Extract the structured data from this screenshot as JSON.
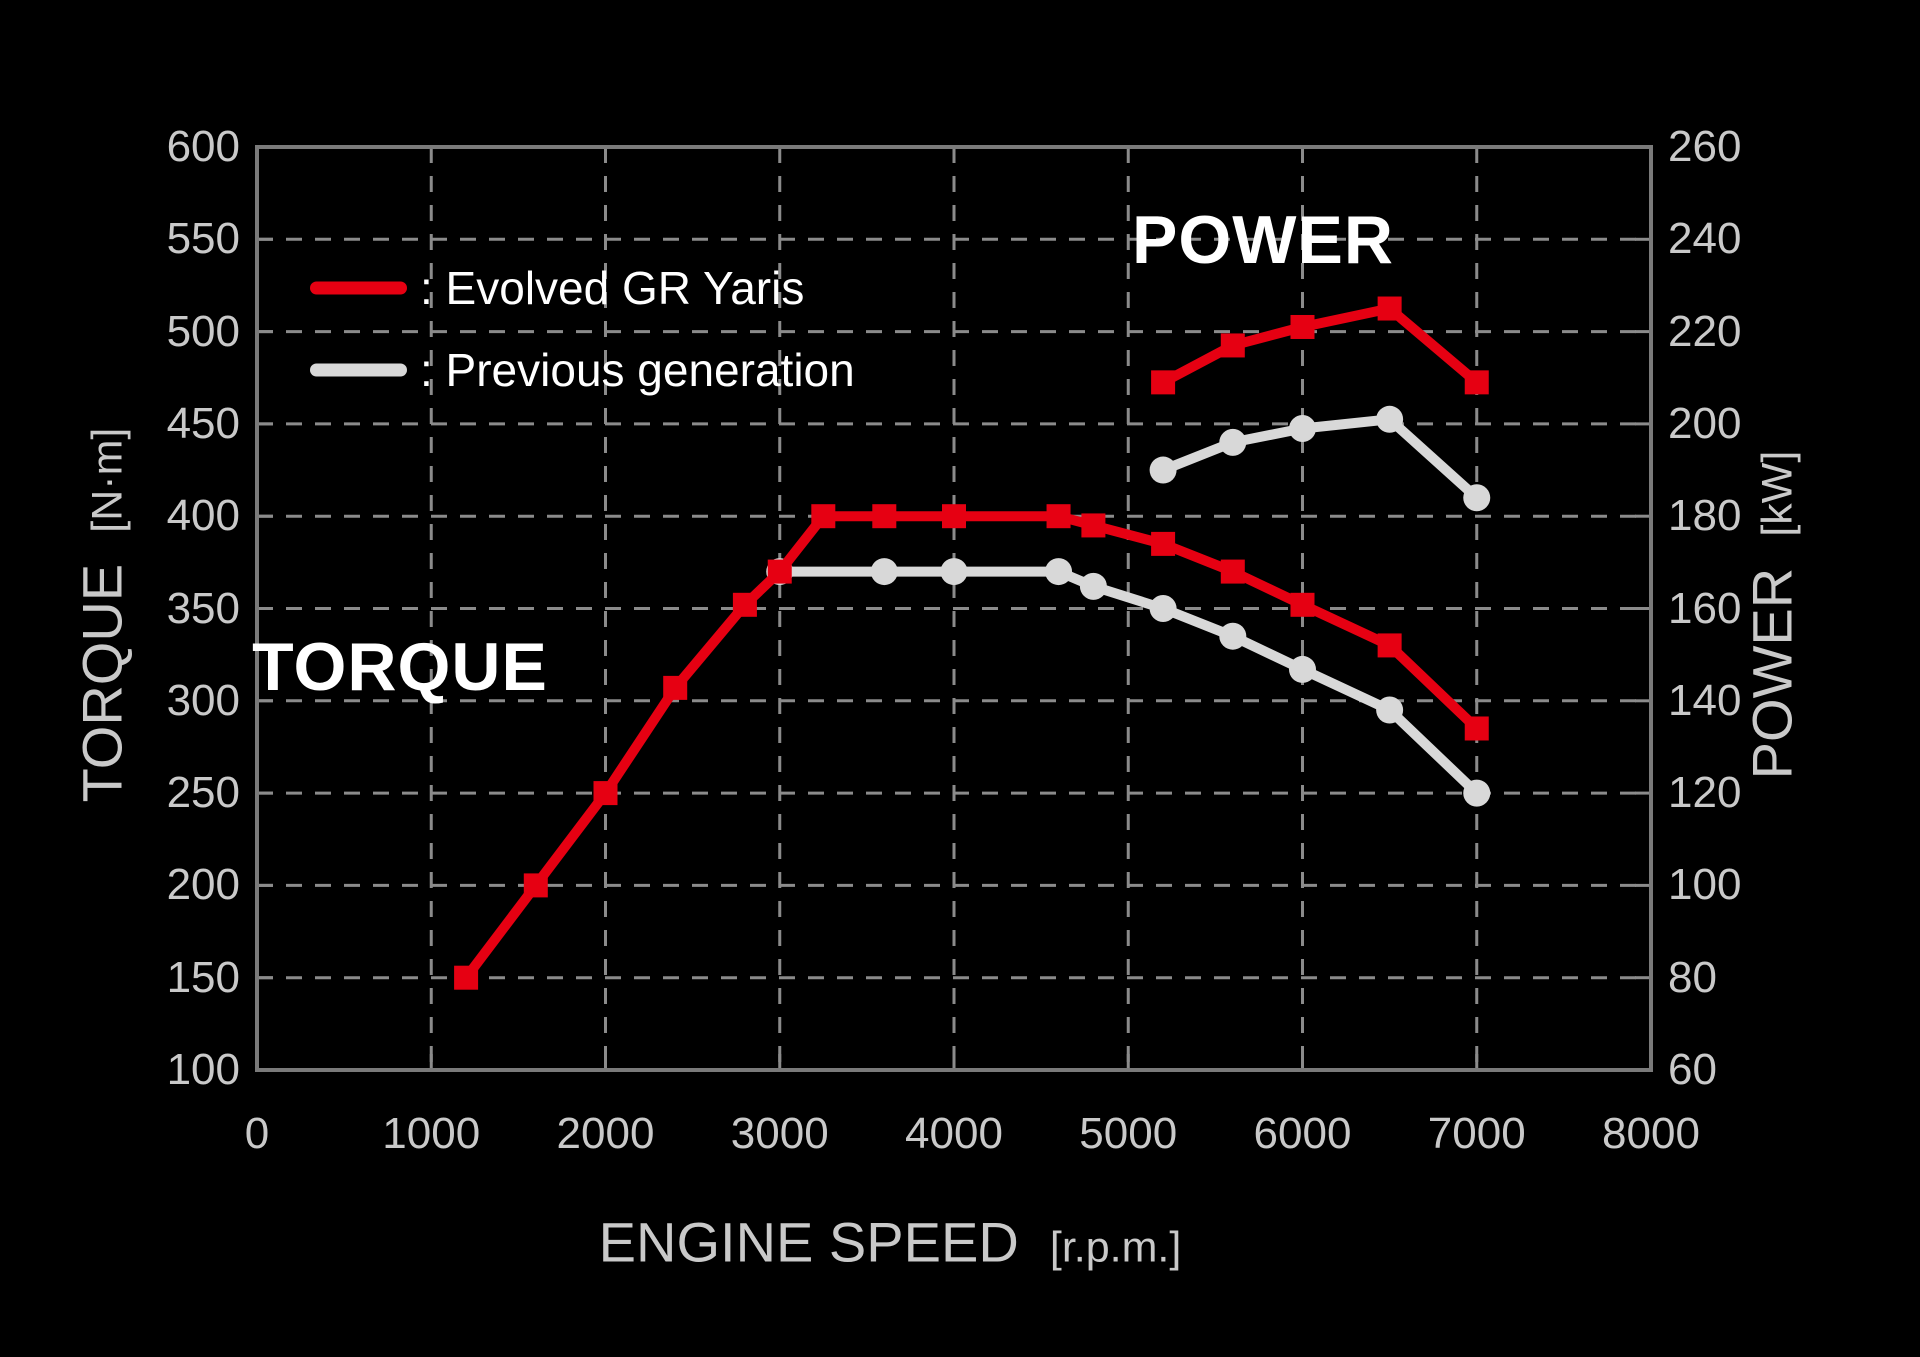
{
  "page": {
    "background": "#000000"
  },
  "chart_data": {
    "type": "line",
    "x_axis": {
      "label": "ENGINE SPEED",
      "unit": "[r.p.m.]",
      "min": 0,
      "max": 8000,
      "ticks": [
        0,
        1000,
        2000,
        3000,
        4000,
        5000,
        6000,
        7000,
        8000
      ]
    },
    "y_axis_left": {
      "label": "TORQUE",
      "unit": "[N·m]",
      "min": 100,
      "max": 600,
      "ticks": [
        600,
        550,
        500,
        450,
        400,
        350,
        300,
        250,
        200,
        150,
        100
      ]
    },
    "y_axis_right": {
      "label": "POWER",
      "unit": "[kW]",
      "min": 60,
      "max": 260,
      "ticks": [
        260,
        240,
        220,
        200,
        180,
        160,
        140,
        120,
        100,
        80,
        60
      ]
    },
    "annotations": {
      "torque_title": "TORQUE",
      "power_title": "POWER"
    },
    "legend": {
      "separator": ":",
      "items": [
        {
          "label": "Evolved GR Yaris",
          "color": "#e60012"
        },
        {
          "label": "Previous generation",
          "color": "#d8d8d8"
        }
      ]
    },
    "grid": {
      "on": true,
      "style": "dashed",
      "color": "#8b8b8b"
    },
    "frame_color": "#7a7a7a",
    "series": [
      {
        "name": "torque-previous-generation",
        "axis": "left",
        "color": "#d8d8d8",
        "marker": "circle",
        "points": [
          [
            3000,
            370
          ],
          [
            3600,
            370
          ],
          [
            4000,
            370
          ],
          [
            4600,
            370
          ],
          [
            4800,
            362
          ],
          [
            5200,
            350
          ],
          [
            5600,
            335
          ],
          [
            6000,
            317
          ],
          [
            6500,
            295
          ],
          [
            7000,
            250
          ]
        ]
      },
      {
        "name": "power-previous-generation",
        "axis": "right",
        "color": "#d8d8d8",
        "marker": "circle",
        "points": [
          [
            5200,
            190
          ],
          [
            5600,
            196
          ],
          [
            6000,
            199
          ],
          [
            6500,
            201
          ],
          [
            7000,
            184
          ]
        ]
      },
      {
        "name": "torque-evolved-gr-yaris",
        "axis": "left",
        "color": "#e60012",
        "marker": "square",
        "points": [
          [
            1200,
            150
          ],
          [
            1600,
            200
          ],
          [
            2000,
            250
          ],
          [
            2400,
            307
          ],
          [
            2800,
            352
          ],
          [
            3000,
            370
          ],
          [
            3250,
            400
          ],
          [
            3600,
            400
          ],
          [
            4000,
            400
          ],
          [
            4600,
            400
          ],
          [
            4800,
            395
          ],
          [
            5200,
            385
          ],
          [
            5600,
            370
          ],
          [
            6000,
            352
          ],
          [
            6500,
            330
          ],
          [
            7000,
            285
          ]
        ]
      },
      {
        "name": "power-evolved-gr-yaris",
        "axis": "right",
        "color": "#e60012",
        "marker": "square",
        "points": [
          [
            5200,
            209
          ],
          [
            5600,
            217
          ],
          [
            6000,
            221
          ],
          [
            6500,
            225
          ],
          [
            7000,
            209
          ]
        ]
      }
    ]
  }
}
